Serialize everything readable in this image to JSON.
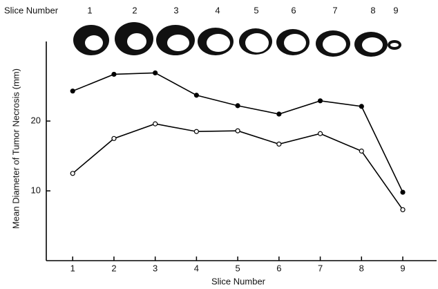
{
  "chart_data": {
    "type": "line",
    "top_label": "Slice Number",
    "slice_labels": [
      "1",
      "2",
      "3",
      "4",
      "5",
      "6",
      "7",
      "8",
      "9"
    ],
    "x_label": "Slice Number",
    "y_label": "Mean Diameter of Tumor Necrosis (mm)",
    "x": [
      1,
      2,
      3,
      4,
      5,
      6,
      7,
      8,
      9
    ],
    "series": [
      {
        "color": "#000000",
        "marker": "filled",
        "values": [
          24.3,
          26.7,
          26.9,
          23.7,
          22.2,
          21.0,
          22.9,
          22.1,
          9.8
        ]
      },
      {
        "color": "#000000",
        "marker": "open",
        "values": [
          12.5,
          17.5,
          19.6,
          18.5,
          18.6,
          16.7,
          18.2,
          15.7,
          7.3
        ]
      }
    ],
    "xlim": [
      0.36,
      9.82
    ],
    "xticks": [
      1,
      2,
      3,
      4,
      5,
      6,
      7,
      8,
      9
    ],
    "ylim": [
      0,
      31.4
    ],
    "yticks": [
      10,
      20
    ],
    "grid": false
  }
}
